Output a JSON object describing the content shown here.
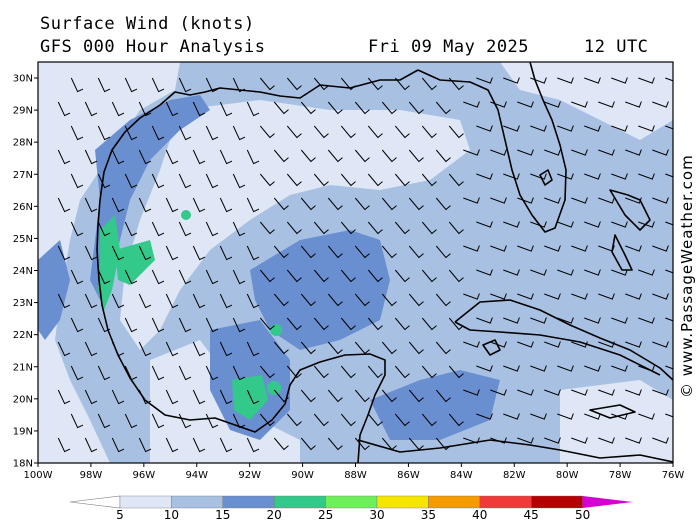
{
  "header": {
    "title_line1": "Surface Wind (knots)",
    "title_line2": "GFS 000 Hour Analysis",
    "date": "Fri 09 May 2025",
    "time": "12 UTC"
  },
  "map": {
    "lat_labels": [
      "30N",
      "29N",
      "28N",
      "27N",
      "26N",
      "25N",
      "24N",
      "23N",
      "22N",
      "21N",
      "20N",
      "19N",
      "18N"
    ],
    "lon_labels": [
      "100W",
      "98W",
      "96W",
      "94W",
      "92W",
      "90W",
      "88W",
      "86W",
      "84W",
      "82W",
      "80W",
      "78W",
      "76W"
    ],
    "colors": {
      "land_fill": "#a8c1e3",
      "ocean_light": "#dfe6f5",
      "ocean_mid": "#a8c1e3",
      "ocean_strong": "#6a8fd0",
      "green_patch": "#33c98a",
      "coast": "#000000"
    }
  },
  "watermark": "© www.PassageWeather.com",
  "colorbar": {
    "labels": [
      "5",
      "10",
      "15",
      "20",
      "25",
      "30",
      "35",
      "40",
      "45",
      "50"
    ],
    "colors": [
      "#ffffff",
      "#dfe6f5",
      "#a8c1e3",
      "#6a8fd0",
      "#33c98a",
      "#6ef05a",
      "#f5e600",
      "#f59a00",
      "#f03a3a",
      "#b40000",
      "#d400d4"
    ]
  }
}
